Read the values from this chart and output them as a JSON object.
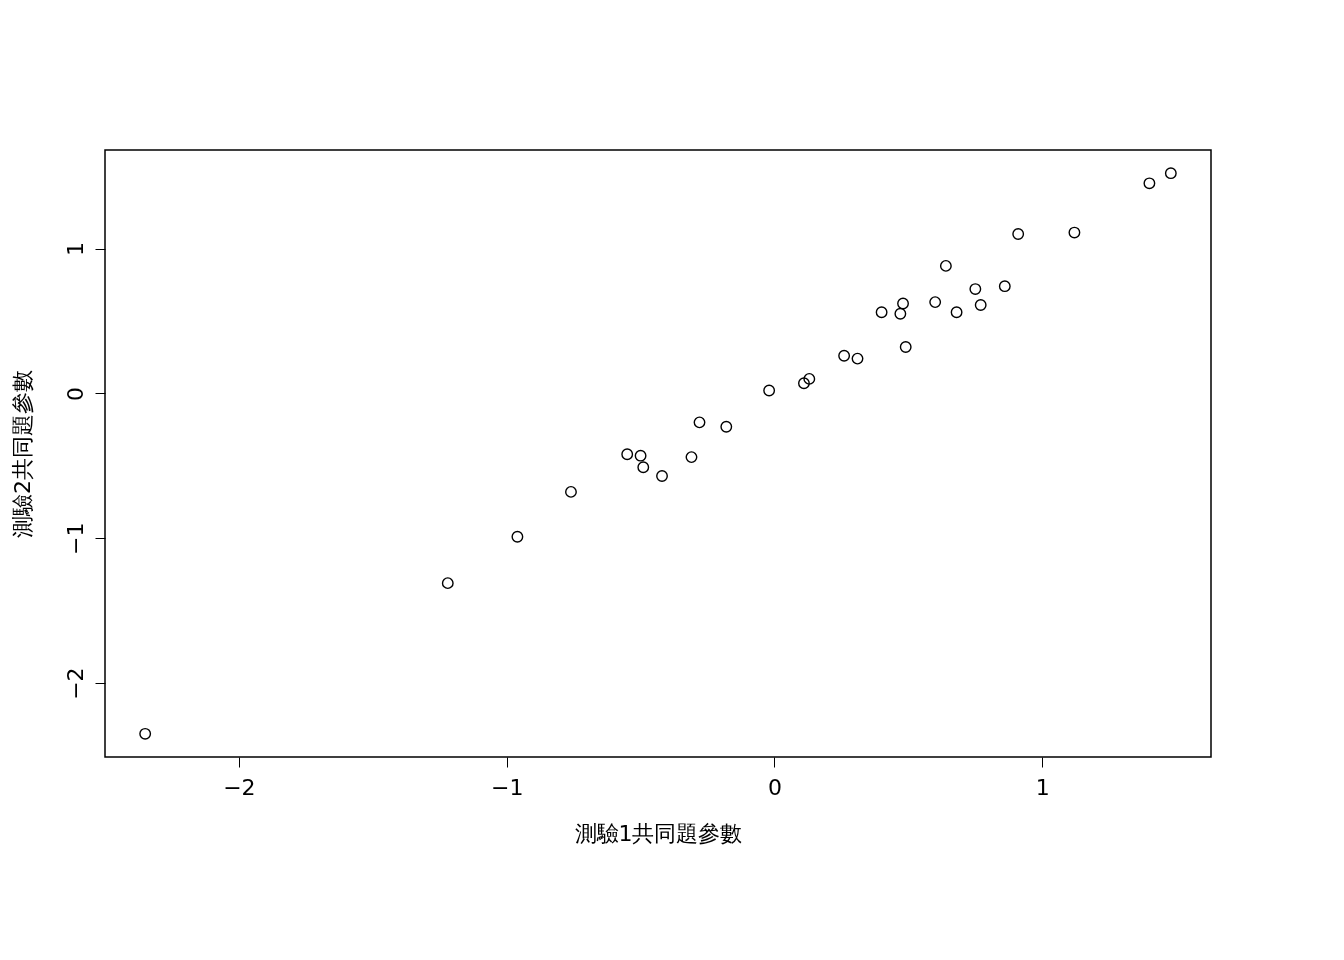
{
  "chart_data": {
    "type": "scatter",
    "xlabel": "測驗1共同題參數",
    "ylabel": "測驗2共同題參數",
    "marker": "circle",
    "grid": false,
    "legend": false,
    "xlim": [
      -2.5,
      1.63
    ],
    "ylim": [
      -2.51,
      1.68
    ],
    "xticks": [
      -2,
      -1,
      0,
      1
    ],
    "yticks": [
      -2,
      -1,
      0,
      1
    ],
    "x": [
      -2.35,
      -1.22,
      -0.96,
      -0.76,
      -0.55,
      -0.5,
      -0.49,
      -0.42,
      -0.31,
      -0.28,
      -0.18,
      -0.02,
      0.11,
      0.13,
      0.26,
      0.31,
      0.4,
      0.47,
      0.48,
      0.49,
      0.6,
      0.64,
      0.68,
      0.75,
      0.77,
      0.86,
      0.91,
      1.12,
      1.4,
      1.48
    ],
    "series": [
      {
        "color": "#000000",
        "values": [
          -2.35,
          -1.31,
          -0.99,
          -0.68,
          -0.42,
          -0.43,
          -0.51,
          -0.57,
          -0.44,
          -0.2,
          -0.23,
          0.02,
          0.07,
          0.1,
          0.26,
          0.24,
          0.56,
          0.55,
          0.62,
          0.32,
          0.63,
          0.88,
          0.56,
          0.72,
          0.61,
          0.74,
          1.1,
          1.11,
          1.45,
          1.52
        ]
      }
    ]
  }
}
